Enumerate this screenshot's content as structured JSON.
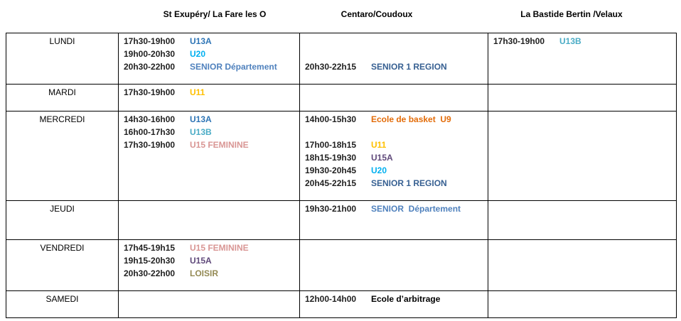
{
  "header": {
    "columns": [
      "St Exupéry/ La Fare les O",
      "Centaro/Coudoux",
      "La Bastide Bertin /Velaux"
    ]
  },
  "table": {
    "rows": [
      {
        "day": "LUNDI",
        "cells": [
          [
            {
              "time": "17h30-19h00",
              "group": "U13A",
              "color": "#2e75b6"
            },
            {
              "time": "19h00-20h30",
              "group": "U20",
              "color": "#00b0f0"
            },
            {
              "time": "20h30-22h00",
              "group": "SENIOR Département",
              "color": "#4f81bd"
            }
          ],
          [
            null,
            null,
            {
              "time": "20h30-22h15",
              "group": "SENIOR 1 REGION",
              "color": "#376092"
            }
          ],
          [
            {
              "time": "17h30-19h00",
              "group": "U13B",
              "color": "#4bacc6"
            }
          ]
        ]
      },
      {
        "day": "MARDI",
        "cells": [
          [
            {
              "time": "17h30-19h00",
              "group": "U11",
              "color": "#ffc000"
            }
          ],
          [],
          []
        ]
      },
      {
        "day": "MERCREDI",
        "cells": [
          [
            {
              "time": "14h30-16h00",
              "group": "U13A",
              "color": "#2e75b6"
            },
            {
              "time": "16h00-17h30",
              "group": "U13B",
              "color": "#4bacc6"
            },
            {
              "time": "17h30-19h00",
              "group": "U15 FEMININE",
              "color": "#d99694"
            }
          ],
          [
            {
              "time": "14h00-15h30",
              "group": "Ecole de basket  U9",
              "color": "#e36c09"
            },
            null,
            {
              "time": "17h00-18h15",
              "group": "U11",
              "color": "#ffc000"
            },
            {
              "time": "18h15-19h30",
              "group": "U15A",
              "color": "#604a7b"
            },
            {
              "time": "19h30-20h45",
              "group": "U20",
              "color": "#00b0f0"
            },
            {
              "time": "20h45-22h15",
              "group": "SENIOR 1 REGION",
              "color": "#376092"
            }
          ],
          []
        ]
      },
      {
        "day": "JEUDI",
        "cells": [
          [],
          [
            {
              "time": "19h30-21h00",
              "group": "SENIOR  Département",
              "color": "#4f81bd"
            }
          ],
          []
        ]
      },
      {
        "day": "VENDREDI",
        "cells": [
          [
            {
              "time": "17h45-19h15",
              "group": "U15 FEMININE",
              "color": "#d99694"
            },
            {
              "time": "19h15-20h30",
              "group": "U15A",
              "color": "#604a7b"
            },
            {
              "time": "20h30-22h00",
              "group": "LOISIR",
              "color": "#948a54"
            }
          ],
          [],
          []
        ]
      },
      {
        "day": "SAMEDI",
        "cells": [
          [],
          [
            {
              "time": "12h00-14h00",
              "group": "Ecole d’arbitrage",
              "color": "#000000"
            }
          ],
          []
        ]
      }
    ]
  }
}
